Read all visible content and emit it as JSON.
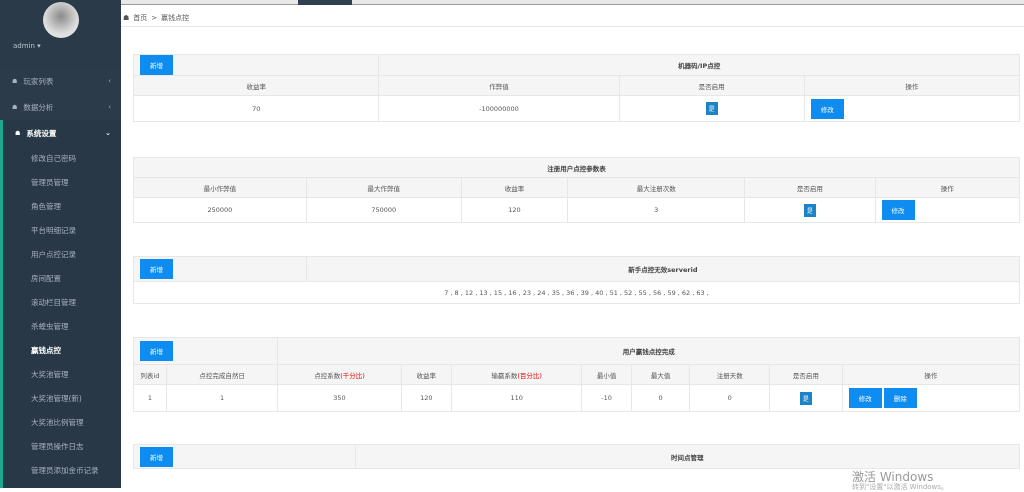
{
  "sidebar": {
    "user": "admin ▾",
    "items": [
      {
        "label": "玩家列表"
      },
      {
        "label": "数据分析"
      }
    ],
    "group": {
      "label": "系统设置",
      "subs": [
        "修改自己密码",
        "管理员管理",
        "角色管理",
        "平台明细记录",
        "用户点控记录",
        "房间配置",
        "滚动栏目管理",
        "杀蝗虫管理",
        "赢钱点控",
        "大奖池管理",
        "大奖池管理(新)",
        "大奖池比例管理",
        "管理员操作日志",
        "管理员添加金币记录"
      ],
      "active": 8
    }
  },
  "breadcrumb": {
    "home": "首页",
    "sep": ">",
    "current": "赢钱点控"
  },
  "add_label": "新增",
  "edit_label": "修改",
  "delete_label": "删除",
  "yes_label": "是",
  "t1": {
    "title": "机器码/IP点控",
    "headers": [
      "收益率",
      "作弊值",
      "是否启用",
      "操作"
    ],
    "row": [
      "70",
      "-100000000"
    ]
  },
  "t2": {
    "title": "注册用户点控参数表",
    "headers": [
      "最小作弊值",
      "最大作弊值",
      "收益率",
      "最大注册次数",
      "是否启用",
      "操作"
    ],
    "row": [
      "250000",
      "750000",
      "120",
      "3"
    ]
  },
  "t3": {
    "title": "新手点控无效serverid",
    "value": "7 , 8 , 12 , 13 , 15 , 16 , 23 , 24 , 35 , 36 , 39 , 40 , 51 , 52 , 55 , 56 , 59 , 62 , 63 ,"
  },
  "t4": {
    "title": "用户赢钱点控完成",
    "headers": [
      "列表id",
      "点控完成自然日",
      "点控系数",
      "收益率",
      "输赢系数",
      "最小值",
      "最大值",
      "注册天数",
      "是否启用",
      "操作"
    ],
    "h2_note": "(千分比)",
    "h4_note": "(百分比)",
    "row": [
      "1",
      "1",
      "350",
      "120",
      "110",
      "-10",
      "0",
      "0"
    ]
  },
  "t5": {
    "title": "时间点管理"
  },
  "watermark": {
    "line1": "激活 Windows",
    "line2": "转到\"设置\"以激活 Windows。"
  }
}
